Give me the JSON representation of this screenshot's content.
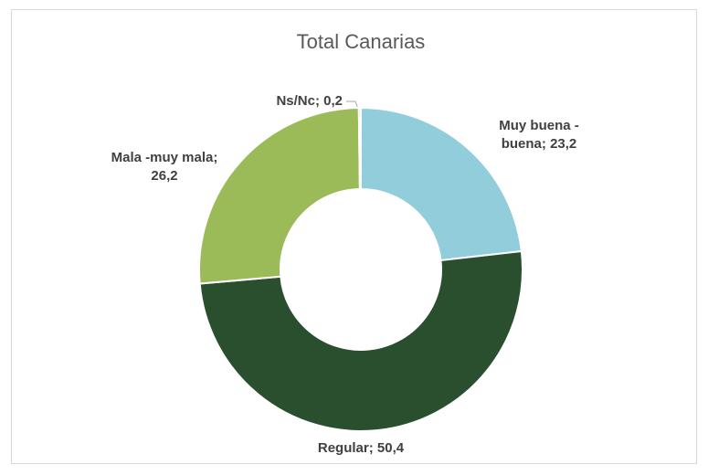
{
  "chart_data": {
    "type": "donut",
    "title": "Total Canarias",
    "categories": [
      "Muy buena - buena",
      "Regular",
      "Mala -muy mala",
      "Ns/Nc"
    ],
    "values": [
      23.2,
      50.4,
      26.2,
      0.2
    ],
    "value_labels": [
      "23,2",
      "50,4",
      "26,2",
      "0,2"
    ],
    "label_separator": "; ",
    "colors": [
      "#92cddc",
      "#2a4f2e",
      "#9bbb59",
      "#a6a6a6"
    ]
  }
}
